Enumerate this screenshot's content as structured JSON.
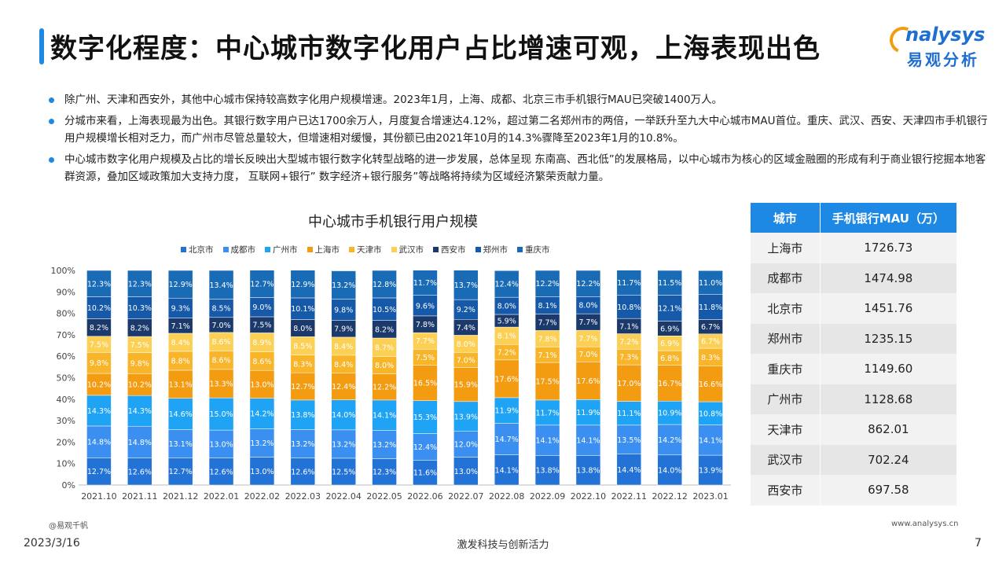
{
  "header": {
    "title": "数字化程度：中心城市数字化用户占比增速可观，上海表现出色",
    "logo_en": "nalysys",
    "logo_cn": "易观分析"
  },
  "bullets": [
    "除广州、天津和西安外，其他中心城市保持较高数字化用户规模增速。2023年1月，上海、成都、北京三市手机银行MAU已突破1400万人。",
    "分城市来看，上海表现最为出色。其银行数字用户已达1700余万人，月度复合增速达4.12%，超过第二名郑州市的两倍，一举跃升至九大中心城市MAU首位。重庆、武汉、西安、天津四市手机银行用户规模增长相对乏力，而广州市尽管总量较大，但增速相对缓慢，其份额已由2021年10月的14.3%骤降至2023年1月的10.8%。",
    "中心城市数字化用户规模及占比的增长反映出大型城市银行数字化转型战略的进一步发展，总体呈现 东南高、西北低”的发展格局，以中心城市为核心的区域金融圈的形成有利于商业银行挖掘本地客群资源，叠加区域政策加大支持力度，  互联网+银行”  数字经济+银行服务”等战略将持续为区域经济繁荣贡献力量。"
  ],
  "table": {
    "headers": [
      "城市",
      "手机银行MAU（万）"
    ],
    "rows": [
      [
        "上海市",
        "1726.73"
      ],
      [
        "成都市",
        "1474.98"
      ],
      [
        "北京市",
        "1451.76"
      ],
      [
        "郑州市",
        "1235.15"
      ],
      [
        "重庆市",
        "1149.60"
      ],
      [
        "广州市",
        "1128.68"
      ],
      [
        "天津市",
        "862.01"
      ],
      [
        "武汉市",
        "702.24"
      ],
      [
        "西安市",
        "697.58"
      ]
    ]
  },
  "footer": {
    "source": "@易观千帆",
    "url": "www.analysys.cn",
    "date": "2023/3/16",
    "slogan": "激发科技与创新活力",
    "page": "7"
  },
  "chart_data": {
    "type": "bar",
    "stacked": true,
    "percent": true,
    "title": "中心城市手机银行用户规模",
    "legend_position": "top",
    "ylim": [
      0,
      100
    ],
    "yticks": [
      "0%",
      "10%",
      "20%",
      "30%",
      "40%",
      "50%",
      "60%",
      "70%",
      "80%",
      "90%",
      "100%"
    ],
    "categories": [
      "2021.10",
      "2021.11",
      "2021.12",
      "2022.01",
      "2022.02",
      "2022.03",
      "2022.04",
      "2022.05",
      "2022.06",
      "2022.07",
      "2022.08",
      "2022.09",
      "2022.10",
      "2022.11",
      "2022.12",
      "2023.01"
    ],
    "series": [
      {
        "name": "北京市",
        "color": "#2373d6",
        "values": [
          12.7,
          12.6,
          12.7,
          12.6,
          13.0,
          12.6,
          12.5,
          12.3,
          11.6,
          13.0,
          14.1,
          13.8,
          13.8,
          14.4,
          14.0,
          13.9
        ]
      },
      {
        "name": "成都市",
        "color": "#3a8ff0",
        "values": [
          14.8,
          14.8,
          13.1,
          13.0,
          13.2,
          13.2,
          13.2,
          13.2,
          12.4,
          12.0,
          14.7,
          14.1,
          14.1,
          13.5,
          14.2,
          14.1
        ]
      },
      {
        "name": "广州市",
        "color": "#1fa3f4",
        "values": [
          14.3,
          14.3,
          14.6,
          15.0,
          14.2,
          13.8,
          14.0,
          14.1,
          15.3,
          13.9,
          11.9,
          11.7,
          11.9,
          11.1,
          10.9,
          10.8
        ]
      },
      {
        "name": "上海市",
        "color": "#f39c12",
        "values": [
          10.2,
          10.2,
          13.1,
          13.3,
          13.0,
          12.7,
          12.4,
          12.2,
          16.5,
          15.9,
          17.6,
          17.5,
          17.6,
          17.0,
          16.7,
          16.6
        ]
      },
      {
        "name": "天津市",
        "color": "#f8b52a",
        "values": [
          9.8,
          9.8,
          8.8,
          8.6,
          8.6,
          8.3,
          8.4,
          8.0,
          7.5,
          7.0,
          7.2,
          7.1,
          7.0,
          7.3,
          6.8,
          8.3
        ]
      },
      {
        "name": "武汉市",
        "color": "#fbd055",
        "values": [
          7.5,
          7.5,
          8.4,
          8.6,
          8.9,
          8.5,
          8.4,
          8.7,
          7.7,
          8.0,
          8.1,
          7.8,
          7.7,
          7.2,
          6.9,
          6.7
        ]
      },
      {
        "name": "西安市",
        "color": "#1b3a6b",
        "values": [
          8.2,
          8.2,
          7.1,
          7.0,
          7.5,
          8.0,
          7.9,
          8.2,
          7.8,
          7.4,
          5.9,
          7.7,
          7.7,
          7.1,
          6.9,
          6.7
        ]
      },
      {
        "name": "郑州市",
        "color": "#1559a8",
        "values": [
          10.2,
          10.3,
          9.3,
          8.5,
          9.0,
          10.1,
          9.8,
          10.5,
          9.6,
          9.2,
          8.0,
          8.1,
          8.0,
          10.8,
          12.1,
          11.8
        ]
      },
      {
        "name": "重庆市",
        "color": "#1a6bb5",
        "values": [
          12.3,
          12.3,
          12.9,
          13.4,
          12.7,
          12.9,
          13.2,
          12.8,
          11.7,
          13.7,
          12.4,
          12.2,
          12.2,
          11.7,
          11.5,
          11.0
        ]
      }
    ]
  }
}
